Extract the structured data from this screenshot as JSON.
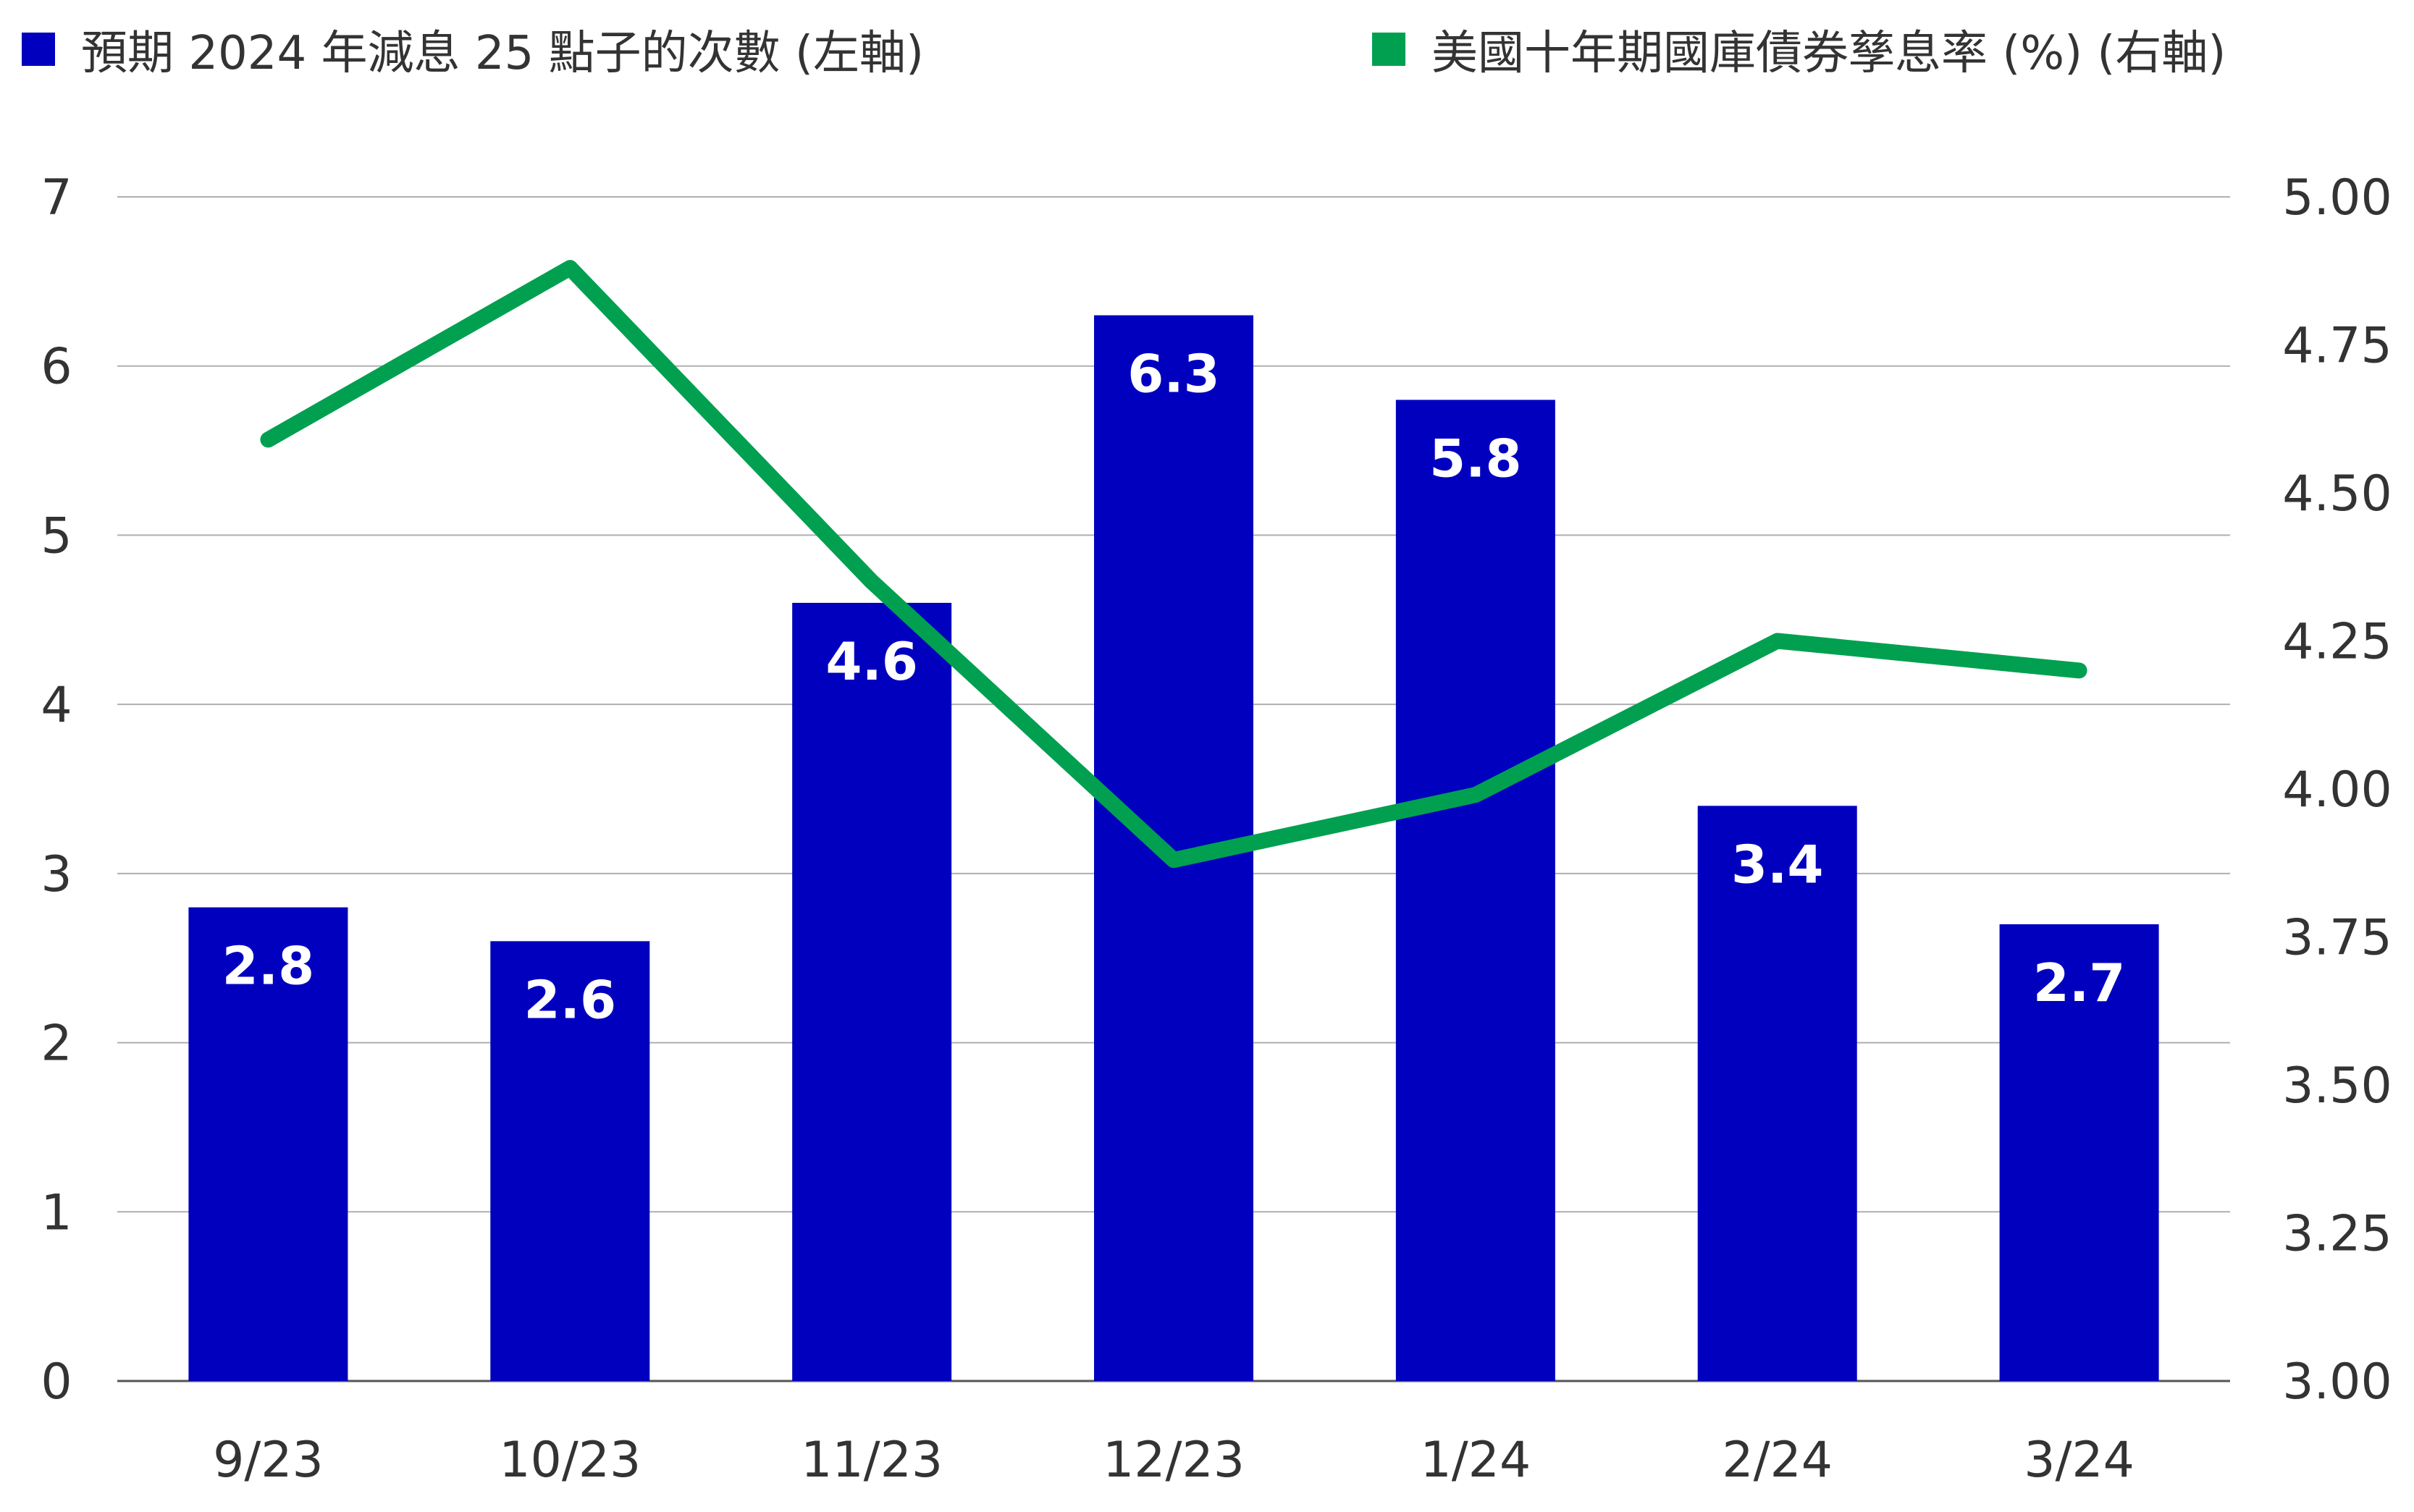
{
  "legend": {
    "bars_label": "預期 2024 年減息 25 點子的次數 (左軸)",
    "line_label": "美國十年期國庫債券孳息率 (%) (右軸)"
  },
  "colors": {
    "bar": "#0000BE",
    "line": "#00A050",
    "grid": "#AFAFAF",
    "text": "#333333"
  },
  "chart_data": {
    "type": "bar",
    "categories": [
      "9/23",
      "10/23",
      "11/23",
      "12/23",
      "1/24",
      "2/24",
      "3/24"
    ],
    "series": [
      {
        "name": "預期 2024 年減息 25 點子的次數 (左軸)",
        "type": "bar",
        "axis": "left",
        "values": [
          2.8,
          2.6,
          4.6,
          6.3,
          5.8,
          3.4,
          2.7
        ],
        "value_labels": [
          "2.8",
          "2.6",
          "4.6",
          "6.3",
          "5.8",
          "3.4",
          "2.7"
        ]
      },
      {
        "name": "美國十年期國庫債券孳息率 (%) (右軸)",
        "type": "line",
        "axis": "right",
        "values": [
          4.59,
          4.88,
          4.35,
          3.88,
          3.99,
          4.25,
          4.2
        ]
      }
    ],
    "y_left": {
      "min": 0,
      "max": 7,
      "ticks": [
        "0",
        "1",
        "2",
        "3",
        "4",
        "5",
        "6",
        "7"
      ]
    },
    "y_right": {
      "min": 3.0,
      "max": 5.0,
      "ticks": [
        "3.00",
        "3.25",
        "3.50",
        "3.75",
        "4.00",
        "4.25",
        "4.50",
        "4.75",
        "5.00"
      ]
    },
    "grid": true,
    "legend_position": "top"
  }
}
